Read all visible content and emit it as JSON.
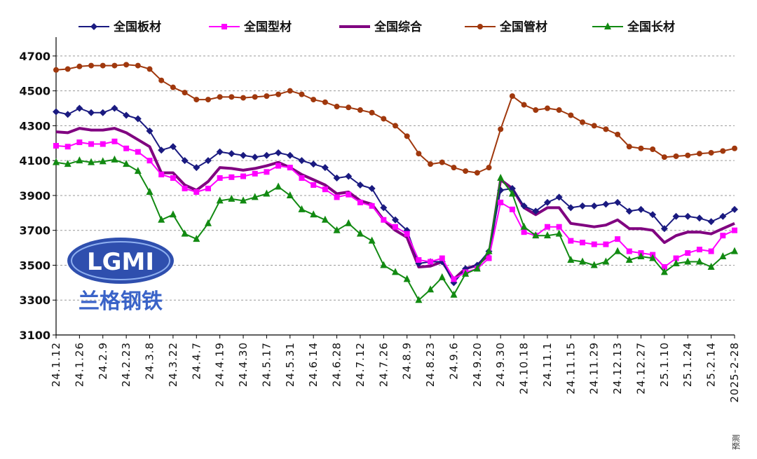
{
  "chart_data": {
    "type": "line",
    "title": "",
    "xlabel": "",
    "ylabel": "",
    "ylim": [
      3100,
      4800
    ],
    "yticks": [
      3100,
      3300,
      3500,
      3700,
      3900,
      4100,
      4300,
      4500,
      4700
    ],
    "grid": "horizontal dashed",
    "legend_position": "top",
    "x_tick_labels": [
      "24.1.12",
      "24.1.26",
      "24.2.9",
      "24.2.23",
      "24.3.8",
      "24.3.22",
      "24.4.7",
      "24.4.19",
      "24.4.30",
      "24.5.17",
      "24.5.31",
      "24.6.14",
      "24.6.28",
      "24.7.12",
      "24.7.26",
      "24.8.9",
      "24.8.23",
      "24.9.6",
      "24.9.20",
      "24.9.30",
      "24.10.18",
      "24.11.1",
      "24.11.15",
      "24.11.29",
      "24.12.13",
      "24.12.27",
      "25.1.10",
      "25.1.24",
      "25.2.14",
      "2025-2-28"
    ],
    "annotation": "预测",
    "series": [
      {
        "name": "全国板材",
        "color": "#1a1a80",
        "marker": "diamond",
        "values": [
          4380,
          4365,
          4400,
          4375,
          4375,
          4400,
          4360,
          4340,
          4270,
          4160,
          4180,
          4100,
          4060,
          4100,
          4150,
          4140,
          4130,
          4120,
          4130,
          4145,
          4130,
          4100,
          4080,
          4060,
          4000,
          4010,
          3960,
          3940,
          3830,
          3760,
          3700,
          3510,
          3520,
          3520,
          3400,
          3480,
          3500,
          3580,
          3930,
          3940,
          3840,
          3810,
          3860,
          3890,
          3830,
          3840,
          3840,
          3850,
          3860,
          3810,
          3820,
          3790,
          3710,
          3780,
          3780,
          3770,
          3750,
          3780,
          3820
        ]
      },
      {
        "name": "全国型材",
        "color": "#ff00ff",
        "marker": "square",
        "values": [
          4185,
          4180,
          4205,
          4195,
          4195,
          4210,
          4170,
          4150,
          4100,
          4020,
          4000,
          3940,
          3920,
          3940,
          4000,
          4005,
          4010,
          4025,
          4035,
          4070,
          4060,
          4000,
          3960,
          3935,
          3890,
          3905,
          3860,
          3840,
          3760,
          3720,
          3680,
          3530,
          3520,
          3540,
          3420,
          3460,
          3480,
          3540,
          3860,
          3820,
          3690,
          3670,
          3720,
          3720,
          3640,
          3630,
          3620,
          3620,
          3650,
          3580,
          3570,
          3560,
          3490,
          3540,
          3570,
          3590,
          3580,
          3670,
          3700
        ]
      },
      {
        "name": "全国综合",
        "color": "#800080",
        "marker": "none",
        "values": [
          4265,
          4260,
          4285,
          4275,
          4275,
          4285,
          4260,
          4220,
          4180,
          4030,
          4030,
          3960,
          3930,
          3980,
          4060,
          4055,
          4045,
          4055,
          4070,
          4090,
          4060,
          4020,
          3990,
          3960,
          3910,
          3920,
          3870,
          3850,
          3760,
          3700,
          3660,
          3490,
          3495,
          3520,
          3420,
          3480,
          3500,
          3560,
          3990,
          3940,
          3830,
          3790,
          3830,
          3830,
          3740,
          3730,
          3720,
          3730,
          3760,
          3710,
          3710,
          3700,
          3630,
          3670,
          3690,
          3690,
          3680,
          3710,
          3740
        ]
      },
      {
        "name": "全国管材",
        "color": "#a0380d",
        "marker": "circle",
        "values": [
          4620,
          4625,
          4640,
          4645,
          4645,
          4645,
          4650,
          4645,
          4625,
          4560,
          4520,
          4490,
          4450,
          4450,
          4465,
          4465,
          4460,
          4465,
          4470,
          4480,
          4500,
          4480,
          4450,
          4435,
          4410,
          4405,
          4390,
          4375,
          4340,
          4300,
          4240,
          4140,
          4080,
          4090,
          4060,
          4040,
          4030,
          4060,
          4280,
          4470,
          4420,
          4390,
          4400,
          4390,
          4360,
          4320,
          4300,
          4280,
          4250,
          4180,
          4170,
          4165,
          4120,
          4125,
          4130,
          4140,
          4145,
          4155,
          4170
        ]
      },
      {
        "name": "全国长材",
        "color": "#128a12",
        "marker": "triangle",
        "values": [
          4090,
          4080,
          4100,
          4090,
          4095,
          4105,
          4080,
          4040,
          3920,
          3760,
          3790,
          3680,
          3650,
          3740,
          3870,
          3880,
          3870,
          3890,
          3910,
          3950,
          3900,
          3820,
          3790,
          3760,
          3700,
          3740,
          3680,
          3640,
          3500,
          3460,
          3420,
          3300,
          3360,
          3430,
          3330,
          3450,
          3480,
          3580,
          4000,
          3910,
          3720,
          3670,
          3670,
          3680,
          3530,
          3520,
          3500,
          3520,
          3580,
          3530,
          3550,
          3540,
          3460,
          3510,
          3520,
          3520,
          3490,
          3550,
          3580
        ]
      }
    ]
  },
  "watermark": {
    "logo_text": "LGMI",
    "company_text": "兰格钢铁"
  }
}
